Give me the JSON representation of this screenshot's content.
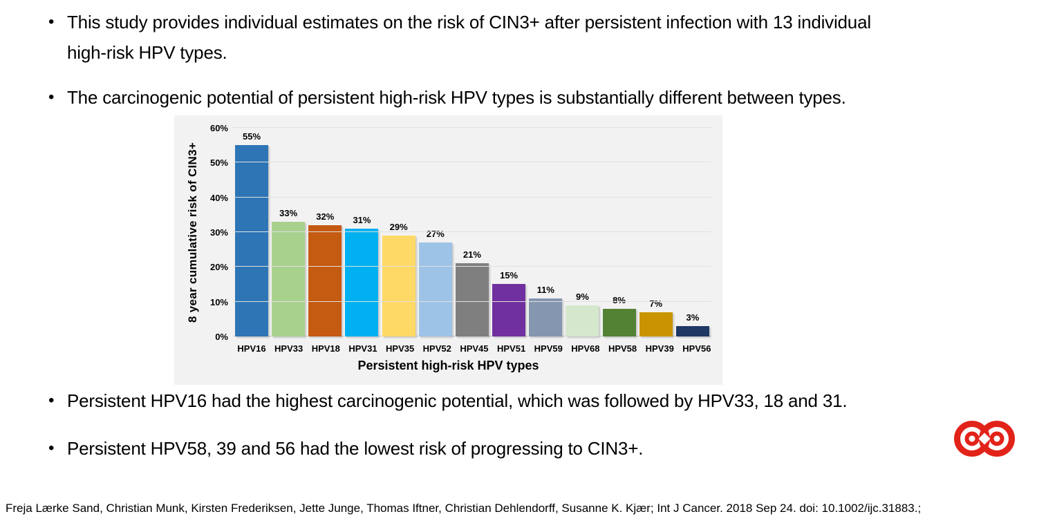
{
  "bullets": [
    "This study provides individual estimates on the risk of CIN3+ after persistent infection with 13 individual\nhigh-risk HPV types.",
    "The carcinogenic potential of persistent high-risk HPV types is substantially different between types.",
    "Persistent HPV16 had the highest carcinogenic potential, which was followed by HPV33, 18 and 31.",
    "Persistent HPV58, 39 and 56 had the lowest risk of progressing to CIN3+."
  ],
  "chart_data": {
    "type": "bar",
    "title": "",
    "categories": [
      "HPV16",
      "HPV33",
      "HPV18",
      "HPV31",
      "HPV35",
      "HPV52",
      "HPV45",
      "HPV51",
      "HPV59",
      "HPV68",
      "HPV58",
      "HPV39",
      "HPV56"
    ],
    "values": [
      55,
      33,
      32,
      31,
      29,
      27,
      21,
      15,
      11,
      9,
      8,
      7,
      3
    ],
    "value_labels": [
      "55%",
      "33%",
      "32%",
      "31%",
      "29%",
      "27%",
      "21%",
      "15%",
      "11%",
      "9%",
      "8%",
      "7%",
      "3%"
    ],
    "bar_colors": [
      "#2E75B6",
      "#A9D18E",
      "#C55A11",
      "#00B0F0",
      "#FFD966",
      "#9DC3E6",
      "#7F7F7F",
      "#7030A0",
      "#8496B0",
      "#D5E8CE",
      "#548235",
      "#C99400",
      "#1F3864"
    ],
    "xlabel": "Persistent high-risk HPV types",
    "ylabel": "8 year cumulative risk of CIN3+",
    "yticks": [
      "0%",
      "10%",
      "20%",
      "30%",
      "40%",
      "50%",
      "60%"
    ],
    "ylim": [
      0,
      60
    ],
    "grid": "horizontal",
    "legend": "none",
    "plot_background": "#F2F2F2",
    "gridline_color": "#E1E1E1"
  },
  "citation": "Freja Lærke Sand, Christian Munk, Kirsten Frederiksen, Jette Junge, Thomas Iftner, Christian Dehlendorff, Susanne K. Kjær; Int J Cancer. 2018 Sep 24. doi: 10.1002/ijc.31883.;",
  "logo": {
    "name": "red-infinity-rings-logo",
    "color": "#E2231A"
  }
}
